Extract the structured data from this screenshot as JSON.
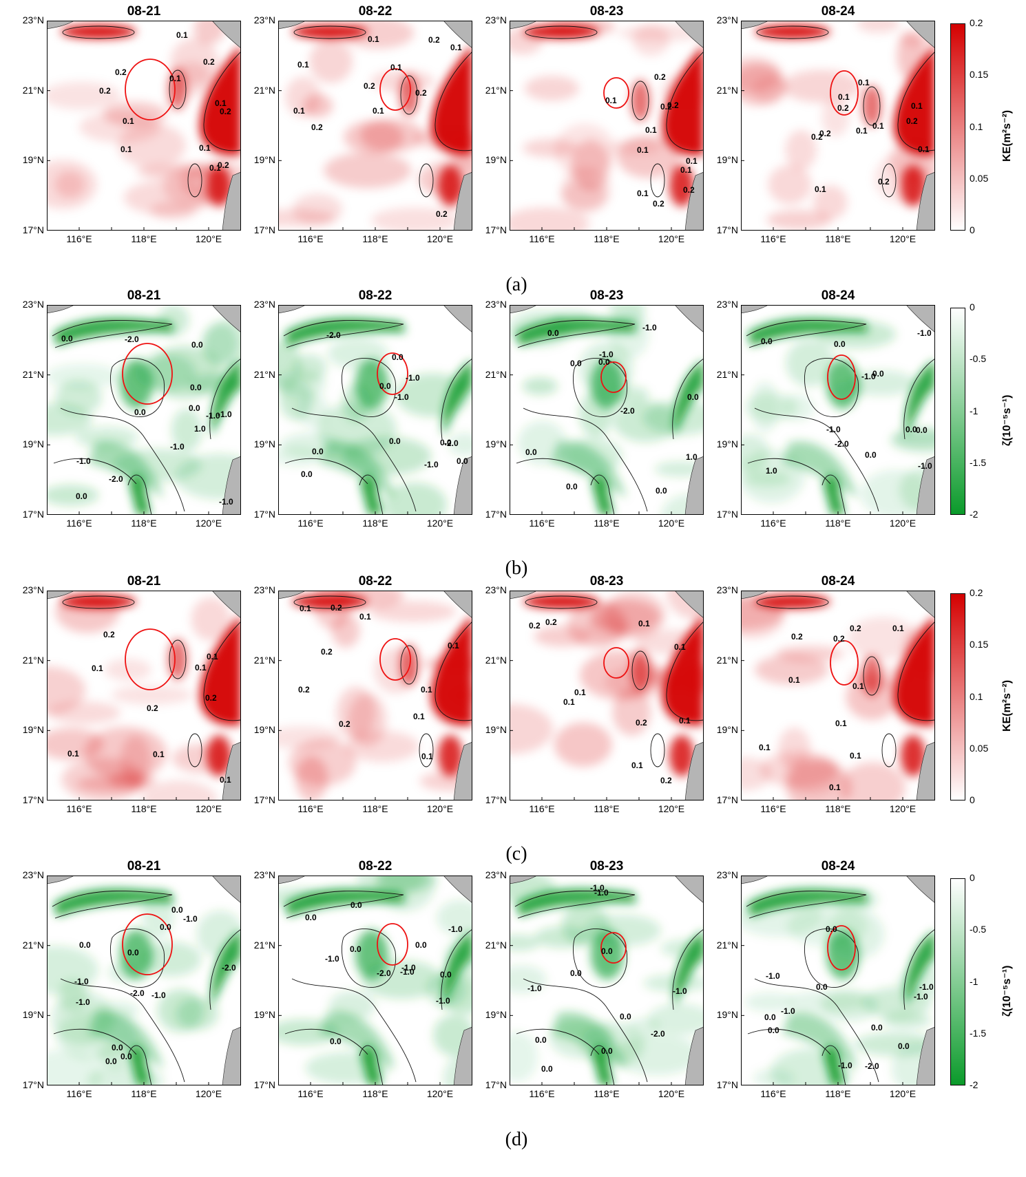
{
  "subfigures": [
    {
      "label": "(a)",
      "variable": "ke",
      "colorbar": {
        "title": "KE(m²s⁻²)",
        "ticks": [
          "0.2",
          "0.15",
          "0.1",
          "0.05",
          "0"
        ],
        "range": [
          0,
          0.2
        ],
        "colors": [
          "#ffffff",
          "#d40000"
        ]
      },
      "panels": [
        {
          "date": "08-21",
          "contour_labels": [
            "0.2",
            "0.1",
            "0.1",
            "0.2",
            "0.1",
            "0.2",
            "0.1",
            "0.1",
            "0.1",
            "0.2",
            "0.2",
            "0.1"
          ]
        },
        {
          "date": "08-22",
          "contour_labels": [
            "0.1",
            "0.1",
            "0.2",
            "0.1",
            "0.1",
            "0.2",
            "0.2",
            "0.1",
            "0.2",
            "0.2",
            "0.1"
          ]
        },
        {
          "date": "08-23",
          "contour_labels": [
            "0.1",
            "0.1",
            "0.2",
            "0.1",
            "0.1",
            "0.2",
            "0.2",
            "0.1",
            "0.2",
            "0.2",
            "0.1"
          ]
        },
        {
          "date": "08-24",
          "contour_labels": [
            "0.1",
            "0.1",
            "0.2",
            "0.1",
            "0.2",
            "0.1",
            "0.1",
            "0.2",
            "0.2",
            "0.2",
            "0.1",
            "0.1"
          ]
        }
      ]
    },
    {
      "label": "(b)",
      "variable": "vort",
      "colorbar": {
        "title": "ζ(10⁻⁵s⁻¹)",
        "ticks": [
          "0",
          "-0.5",
          "-1",
          "-1.5",
          "-2"
        ],
        "range": [
          -2,
          0
        ],
        "colors": [
          "#ffffff",
          "#0a9a2a"
        ]
      },
      "panels": [
        {
          "date": "08-21",
          "contour_labels": [
            "0.0",
            "-1.0",
            "1.0",
            "0.0",
            "-1.0",
            "-1.0",
            "0.0",
            "0.0",
            "-2.0",
            "0.0",
            "-1.0",
            "-1.0",
            "-2.0",
            "0.0"
          ]
        },
        {
          "date": "08-22",
          "contour_labels": [
            "0.0",
            "-1.0",
            "0.0",
            "0.0",
            "0.0",
            "-1.0",
            "0.0",
            "-1.0",
            "-2.0",
            "0.0",
            "-2.0",
            "0.0"
          ]
        },
        {
          "date": "08-23",
          "contour_labels": [
            "0.0",
            "0.0",
            "1.0",
            "0.0",
            "0.0",
            "-1.0",
            "0.0",
            "-2.0",
            "0.0",
            "0.0",
            "-1.0"
          ]
        },
        {
          "date": "08-24",
          "contour_labels": [
            "0.0",
            "0.0",
            "1.0",
            "-1.0",
            "0.0",
            "-1.0",
            "0.0",
            "-2.0",
            "-1.0",
            "0.0",
            "0.0",
            "-1.0"
          ]
        }
      ]
    },
    {
      "label": "(c)",
      "variable": "ke",
      "colorbar": {
        "title": "KE(m²s⁻²)",
        "ticks": [
          "0.2",
          "0.15",
          "0.1",
          "0.05",
          "0"
        ],
        "range": [
          0,
          0.2
        ],
        "colors": [
          "#ffffff",
          "#d40000"
        ]
      },
      "panels": [
        {
          "date": "08-21",
          "contour_labels": [
            "0.1",
            "0.2",
            "0.1",
            "0.1",
            "0.2",
            "0.1",
            "0.1",
            "0.1",
            "0.2"
          ]
        },
        {
          "date": "08-22",
          "contour_labels": [
            "0.2",
            "0.1",
            "0.1",
            "0.2",
            "0.2",
            "0.1",
            "0.1",
            "0.1",
            "0.1",
            "0.2"
          ]
        },
        {
          "date": "08-23",
          "contour_labels": [
            "0.1",
            "0.1",
            "0.2",
            "0.2",
            "0.2",
            "0.1",
            "0.1",
            "0.2",
            "0.1",
            "0.1"
          ]
        },
        {
          "date": "08-24",
          "contour_labels": [
            "0.1",
            "0.1",
            "0.2",
            "0.1",
            "0.1",
            "0.2",
            "0.1",
            "0.1",
            "0.2",
            "0.1"
          ]
        }
      ]
    },
    {
      "label": "(d)",
      "variable": "vort",
      "colorbar": {
        "title": "ζ(10⁻⁵s⁻¹)",
        "ticks": [
          "0",
          "-0.5",
          "-1",
          "-1.5",
          "-2"
        ],
        "range": [
          -2,
          0
        ],
        "colors": [
          "#ffffff",
          "#0a9a2a"
        ]
      },
      "panels": [
        {
          "date": "08-21",
          "contour_labels": [
            "0.0",
            "-2.0",
            "0.0",
            "-1.0",
            "-1.0",
            "-1.0",
            "0.0",
            "-2.0",
            "0.0",
            "-1.0",
            "0.0",
            "0.0",
            "0.0"
          ]
        },
        {
          "date": "08-22",
          "contour_labels": [
            "0.0",
            "-1.0",
            "-1.0",
            "0.0",
            "0.0",
            "-1.0",
            "0.0",
            "-1.0",
            "0.0",
            "-2.0",
            "-1.0",
            "0.0"
          ]
        },
        {
          "date": "08-23",
          "contour_labels": [
            "-1.0",
            "0.0",
            "0.0",
            "0.0",
            "-1.0",
            "0.0",
            "0.0",
            "-2.0",
            "-1.0",
            "0.0",
            "-1.0"
          ]
        },
        {
          "date": "08-24",
          "contour_labels": [
            "0.0",
            "-1.0",
            "0.0",
            "-1.0",
            "0.0",
            "-1.0",
            "0.0",
            "-2.0",
            "-1.0",
            "0.0",
            "-1.0",
            "0.0"
          ]
        }
      ]
    }
  ],
  "axes": {
    "y_ticks": [
      "23°N",
      "21°N",
      "19°N",
      "17°N"
    ],
    "x_ticks": [
      "116°E",
      "118°E",
      "120°E"
    ],
    "lat_range": [
      17,
      23
    ],
    "lon_range": [
      115,
      121
    ]
  }
}
